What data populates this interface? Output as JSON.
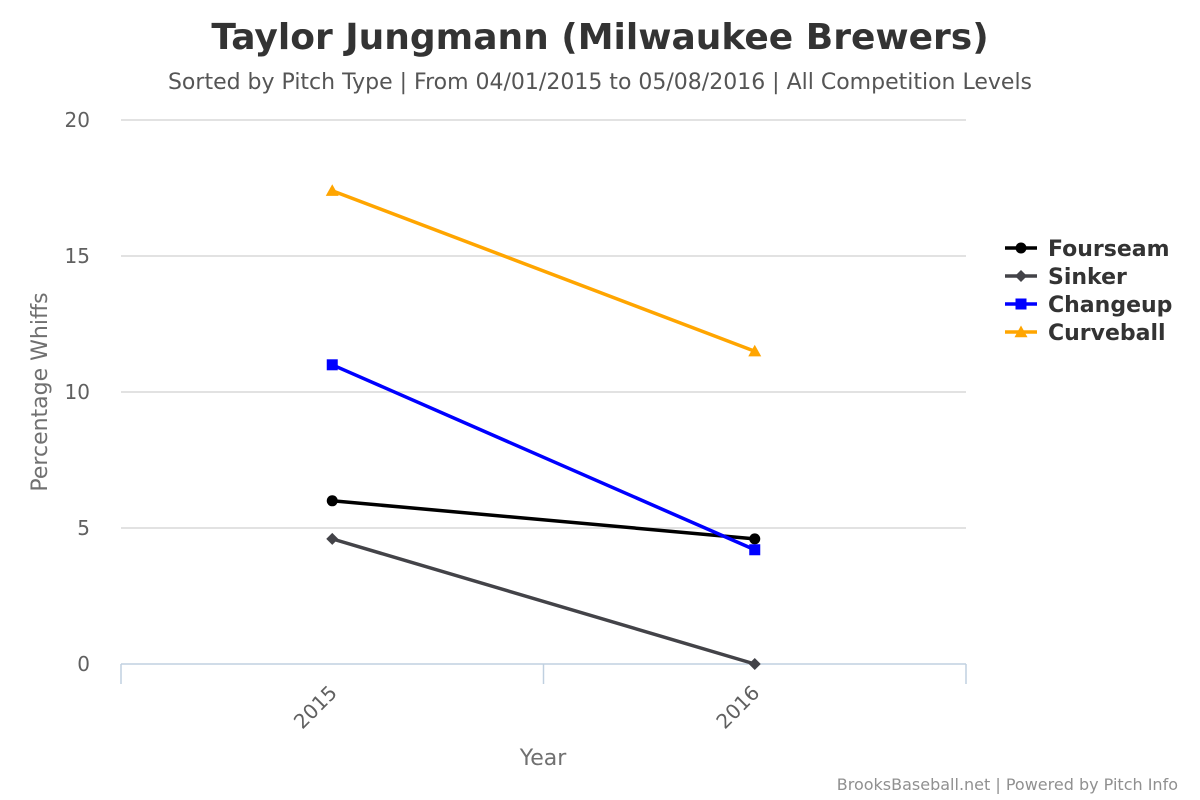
{
  "chart_data": {
    "type": "line",
    "title": "Taylor Jungmann (Milwaukee Brewers)",
    "subtitle": "Sorted by Pitch Type | From 04/01/2015 to 05/08/2016 | All Competition Levels",
    "xlabel": "Year",
    "ylabel": "Percentage Whiffs",
    "categories": [
      "2015",
      "2016"
    ],
    "ylim": [
      0,
      20
    ],
    "yticks": [
      0,
      5,
      10,
      15,
      20
    ],
    "grid": true,
    "legend_position": "right",
    "series": [
      {
        "name": "Fourseam",
        "values": [
          6.0,
          4.6
        ],
        "color": "#000000",
        "marker": "circle"
      },
      {
        "name": "Sinker",
        "values": [
          4.6,
          0.0
        ],
        "color": "#434348",
        "marker": "diamond"
      },
      {
        "name": "Changeup",
        "values": [
          11.0,
          4.2
        ],
        "color": "#0000ff",
        "marker": "square"
      },
      {
        "name": "Curveball",
        "values": [
          17.4,
          11.5
        ],
        "color": "#ffa500",
        "marker": "triangle"
      }
    ]
  },
  "credits": "BrooksBaseball.net | Powered by Pitch Info"
}
